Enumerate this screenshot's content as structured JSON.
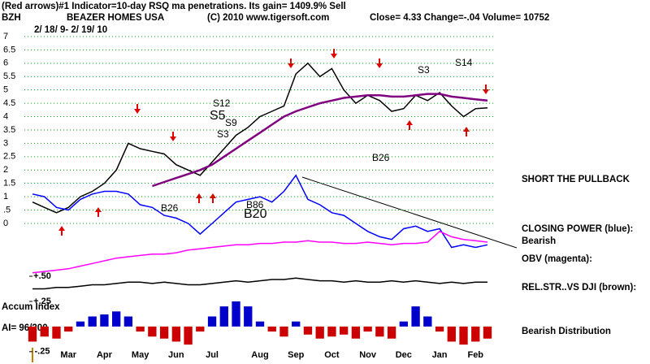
{
  "chart_data": [
    {
      "type": "line",
      "title": "(Red arrows)#1 Indicator=10-day RSQ ma penetrations. Its gain= 1409.9% Sell",
      "ticker": "BZH",
      "company": "BEAZER HOMES USA",
      "copyright": "(C) 2010 www.tigersoft.com",
      "quote": "Close= 4.33 Change=-.04 Volume= 10752",
      "date_range": "2/ 18/ 9- 2/ 19/ 10",
      "categories": [
        null,
        null,
        null,
        "Mar",
        null,
        null,
        "Apr",
        null,
        null,
        "May",
        null,
        null,
        "Jun",
        null,
        null,
        "Jul",
        null,
        null,
        null,
        "Aug",
        null,
        null,
        "Sep",
        null,
        null,
        "Oct",
        null,
        null,
        "Nov",
        null,
        null,
        "Dec",
        null,
        null,
        "Jan",
        null,
        null,
        "Feb",
        null
      ],
      "series": [
        {
          "name": "Price",
          "color": "#000000",
          "values": [
            0.8,
            0.6,
            0.4,
            0.6,
            1.0,
            1.2,
            1.5,
            2.0,
            3.0,
            2.8,
            2.7,
            2.6,
            2.2,
            2.0,
            1.8,
            2.3,
            2.8,
            3.3,
            3.6,
            4.0,
            4.2,
            4.4,
            5.6,
            6.0,
            5.5,
            5.8,
            5.0,
            4.5,
            4.8,
            4.6,
            4.2,
            4.3,
            4.8,
            4.6,
            4.9,
            4.4,
            4.0,
            4.3,
            4.33
          ]
        },
        {
          "name": "Moving Average",
          "color": "#800080",
          "values": [
            null,
            null,
            null,
            null,
            null,
            null,
            null,
            null,
            null,
            null,
            1.4,
            1.55,
            1.7,
            1.85,
            2.0,
            2.2,
            2.5,
            2.8,
            3.1,
            3.4,
            3.7,
            4.0,
            4.2,
            4.35,
            4.5,
            4.6,
            4.7,
            4.75,
            4.8,
            4.8,
            4.75,
            4.75,
            4.8,
            4.85,
            4.85,
            4.75,
            4.7,
            4.65,
            4.6
          ]
        },
        {
          "name": "Closing Power",
          "color": "#0000ff",
          "values": [
            1.1,
            1.0,
            0.6,
            0.5,
            0.9,
            1.1,
            1.2,
            1.2,
            1.1,
            0.7,
            0.6,
            0.3,
            0.2,
            0.0,
            -0.4,
            0.0,
            0.4,
            0.8,
            0.9,
            1.0,
            0.8,
            1.2,
            1.8,
            0.9,
            0.7,
            0.4,
            0.3,
            0.0,
            -0.3,
            -0.5,
            -0.6,
            -0.2,
            -0.1,
            -0.3,
            -0.2,
            -0.9,
            -0.8,
            -0.9,
            -0.8
          ]
        },
        {
          "name": "OBV",
          "color": "#ff00ff",
          "values": [
            -1.85,
            -1.8,
            -1.75,
            -1.7,
            -1.6,
            -1.5,
            -1.4,
            -1.3,
            -1.25,
            -1.2,
            -1.15,
            -1.15,
            -1.1,
            -1.0,
            -0.95,
            -0.9,
            -0.85,
            -0.8,
            -0.8,
            -0.75,
            -0.75,
            -0.7,
            -0.7,
            -0.65,
            -0.7,
            -0.7,
            -0.75,
            -0.75,
            -0.7,
            -0.75,
            -0.8,
            -0.75,
            -0.75,
            -0.7,
            -0.3,
            -0.5,
            -0.6,
            -0.65,
            -0.7
          ]
        },
        {
          "name": "Rel. Strength vs DJI",
          "color": "#000000",
          "values": [
            -2.45,
            -2.45,
            -2.4,
            -2.4,
            -2.35,
            -2.3,
            -2.3,
            -2.25,
            -2.2,
            -2.2,
            -2.25,
            -2.2,
            -2.25,
            -2.3,
            -2.3,
            -2.25,
            -2.2,
            -2.15,
            -2.2,
            -2.15,
            -2.1,
            -2.1,
            -2.05,
            -2.1,
            -2.15,
            -2.15,
            -2.2,
            -2.15,
            -2.2,
            -2.2,
            -2.15,
            -2.2,
            -2.15,
            -2.2,
            -2.25,
            -2.2,
            -2.25,
            -2.2,
            -2.2
          ]
        }
      ],
      "ylim": [
        -2.6,
        7.2
      ],
      "yticks": [
        7,
        6.5,
        6,
        5.5,
        5,
        4.5,
        4,
        3.5,
        3,
        2.5,
        2,
        1.5,
        1,
        {
          "value": 0.5,
          "label": ".5"
        },
        0
      ],
      "grid": true,
      "grid_color": "#00a000",
      "annotations": [
        "S12",
        "S5",
        "S9",
        "S3",
        "B26",
        "B86",
        "B20",
        "S3",
        "S14",
        "B26",
        "SHORT THE PULLBACK",
        "CLOSING POWER (blue):",
        "Bearish",
        "OBV (magenta):",
        "REL.STR..VS DJI (brown):"
      ]
    },
    {
      "type": "bar",
      "title": "Accum Index",
      "subtitle": "AI= 96/200",
      "note": "Bearish Distribution",
      "values": [
        -0.15,
        -0.1,
        -0.12,
        -0.05,
        0.05,
        0.1,
        0.12,
        0.15,
        0.1,
        -0.05,
        -0.1,
        -0.12,
        -0.15,
        -0.18,
        -0.05,
        0.1,
        0.2,
        0.25,
        0.2,
        0.05,
        -0.05,
        -0.1,
        0.05,
        -0.08,
        -0.12,
        -0.1,
        -0.08,
        -0.12,
        -0.05,
        -0.1,
        -0.12,
        0.05,
        0.2,
        0.1,
        -0.05,
        -0.15,
        -0.18,
        -0.15,
        -0.12
      ],
      "pos_color": "#0000cc",
      "neg_color": "#cc0000",
      "ylim": [
        -0.3,
        0.55
      ],
      "yticks": [
        {
          "value": 0.5,
          "label": "+.50"
        },
        {
          "value": 0.25,
          "label": "+.25"
        },
        {
          "value": -0.25,
          "label": "-.25"
        }
      ]
    }
  ]
}
